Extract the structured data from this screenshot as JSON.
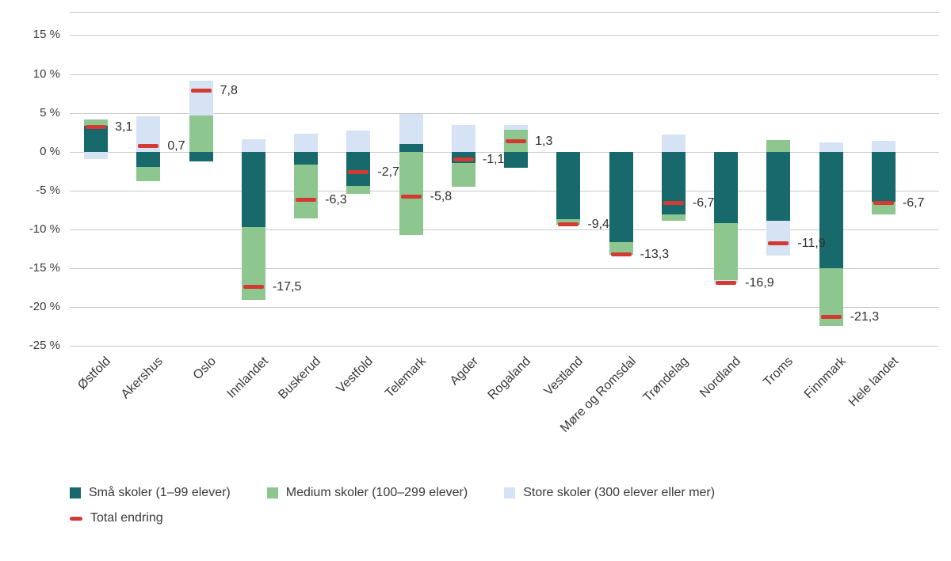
{
  "chart_data": {
    "type": "bar",
    "stacked": true,
    "title": "",
    "categories": [
      "Østfold",
      "Akershus",
      "Oslo",
      "Innlandet",
      "Buskerud",
      "Vestfold",
      "Telemark",
      "Agder",
      "Rogaland",
      "Vestland",
      "Møre og Romsdal",
      "Trøndelag",
      "Nordland",
      "Troms",
      "Finnmark",
      "Hele landet"
    ],
    "series": [
      {
        "name": "Små skoler (1–99 elever)",
        "color": "#17696b",
        "values": [
          3.3,
          -2.0,
          -1.3,
          -9.7,
          -1.7,
          -4.4,
          1.0,
          -1.5,
          -2.1,
          -8.7,
          -11.7,
          -8.1,
          -9.2,
          -8.9,
          -15.0,
          -6.5
        ]
      },
      {
        "name": "Medium skoler (100–299 elever)",
        "color": "#8ec690",
        "values": [
          0.8,
          -1.8,
          4.7,
          -9.4,
          -6.9,
          -1.0,
          -10.7,
          -3.0,
          2.8,
          -0.7,
          -1.6,
          -0.8,
          -7.3,
          1.5,
          -7.5,
          -1.6
        ]
      },
      {
        "name": "Store skoler (300 elever eller mer)",
        "color": "#d5e3f4",
        "values": [
          -1.0,
          4.5,
          4.4,
          1.6,
          2.3,
          2.7,
          3.9,
          3.4,
          0.6,
          0.0,
          0.0,
          2.2,
          -0.4,
          -4.5,
          1.2,
          1.4
        ]
      }
    ],
    "totals": {
      "name": "Total endring",
      "color": "#d43a34",
      "values": [
        3.1,
        0.7,
        7.8,
        -17.5,
        -6.3,
        -2.7,
        -5.8,
        -1.1,
        1.3,
        -9.4,
        -13.3,
        -6.7,
        -16.9,
        -11.9,
        -21.3,
        -6.7
      ],
      "labels": [
        "3,1",
        "0,7",
        "7,8",
        "-17,5",
        "-6,3",
        "-2,7",
        "-5,8",
        "-1,1",
        "1,3",
        "-9,4",
        "-13,3",
        "-6,7",
        "-16,9",
        "-11,9",
        "-21,3",
        "-6,7"
      ]
    },
    "y_axis": {
      "max": 18,
      "min": -25,
      "ticks": [
        15,
        10,
        5,
        0,
        -5,
        -10,
        -15,
        -20,
        -25
      ],
      "tick_labels": [
        "15 %",
        "10 %",
        "5 %",
        "0 %",
        "-5 %",
        "-10 %",
        "-15 %",
        "-20 %",
        "-25 %"
      ]
    },
    "grid": true,
    "legend_position": "bottom"
  },
  "colors": {
    "grid": "#c9c9c9",
    "background": "#ffffff",
    "text": "#3a3a3a"
  }
}
